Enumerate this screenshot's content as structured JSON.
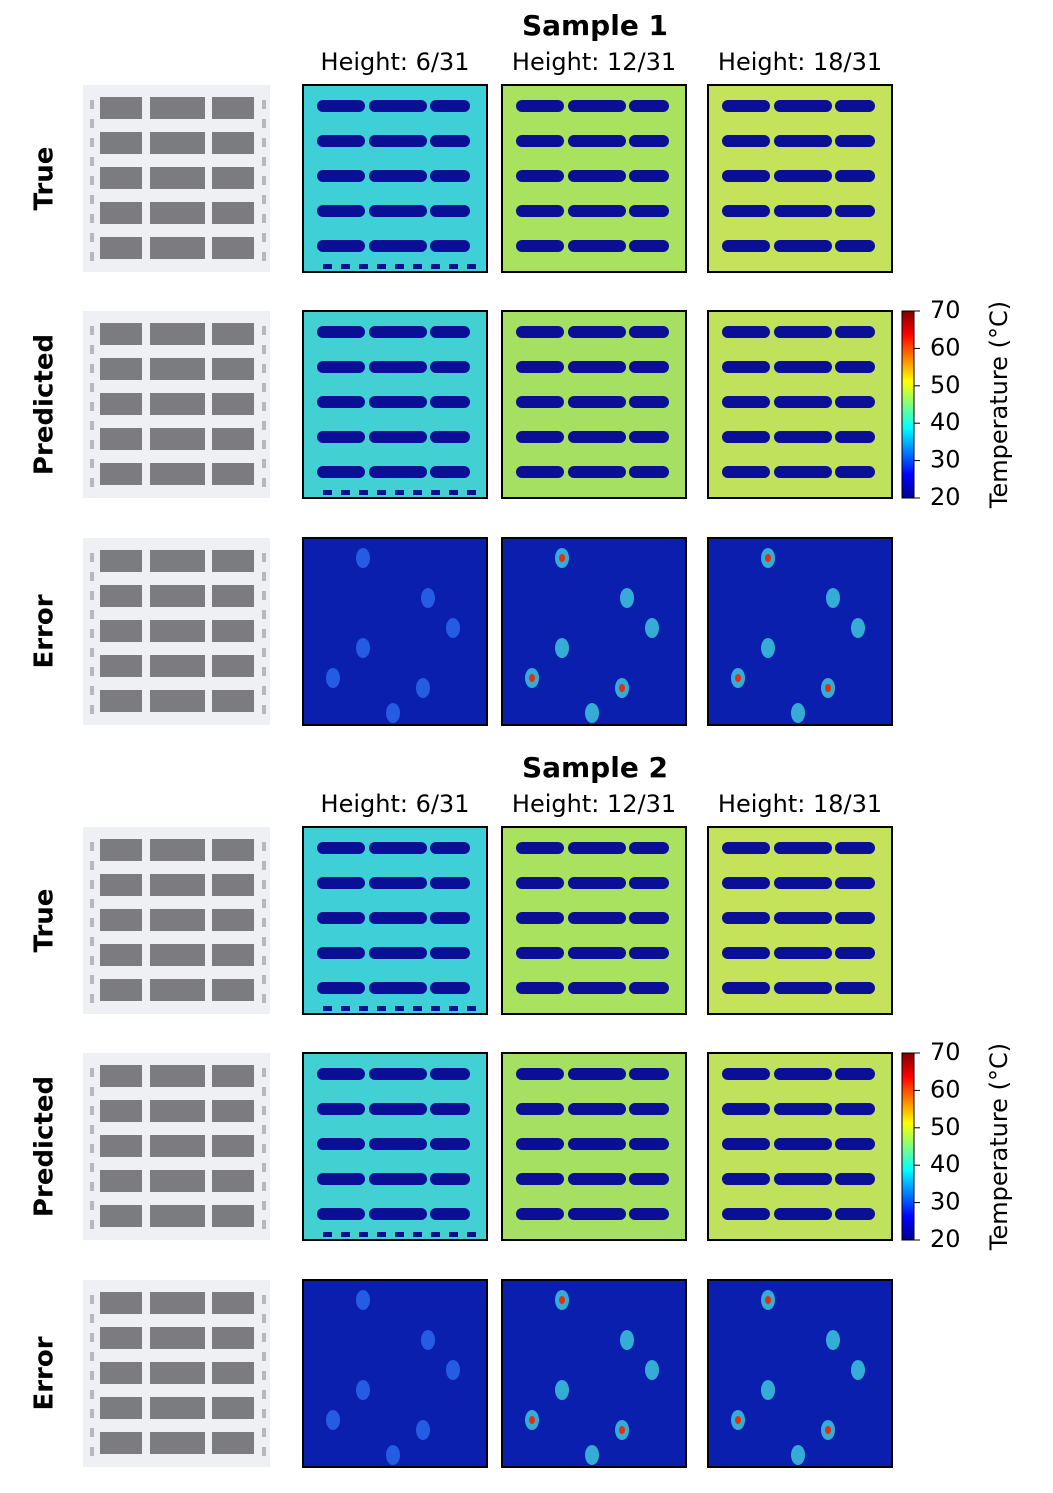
{
  "samples": [
    {
      "title": "Sample 1",
      "columns": [
        "Height: 6/31",
        "Height: 12/31",
        "Height: 18/31"
      ],
      "rows": [
        "True",
        "Predicted",
        "Error"
      ],
      "colorbar": {
        "label": "Temperature (°C)",
        "lim": [
          20,
          70
        ],
        "ticks": [
          20,
          30,
          40,
          50,
          60,
          70
        ]
      }
    },
    {
      "title": "Sample 2",
      "columns": [
        "Height: 6/31",
        "Height: 12/31",
        "Height: 18/31"
      ],
      "rows": [
        "True",
        "Predicted",
        "Error"
      ],
      "colorbar": {
        "label": "Temperature (°C)",
        "lim": [
          20,
          70
        ],
        "ticks": [
          20,
          30,
          40,
          50,
          60,
          70
        ]
      }
    }
  ]
}
